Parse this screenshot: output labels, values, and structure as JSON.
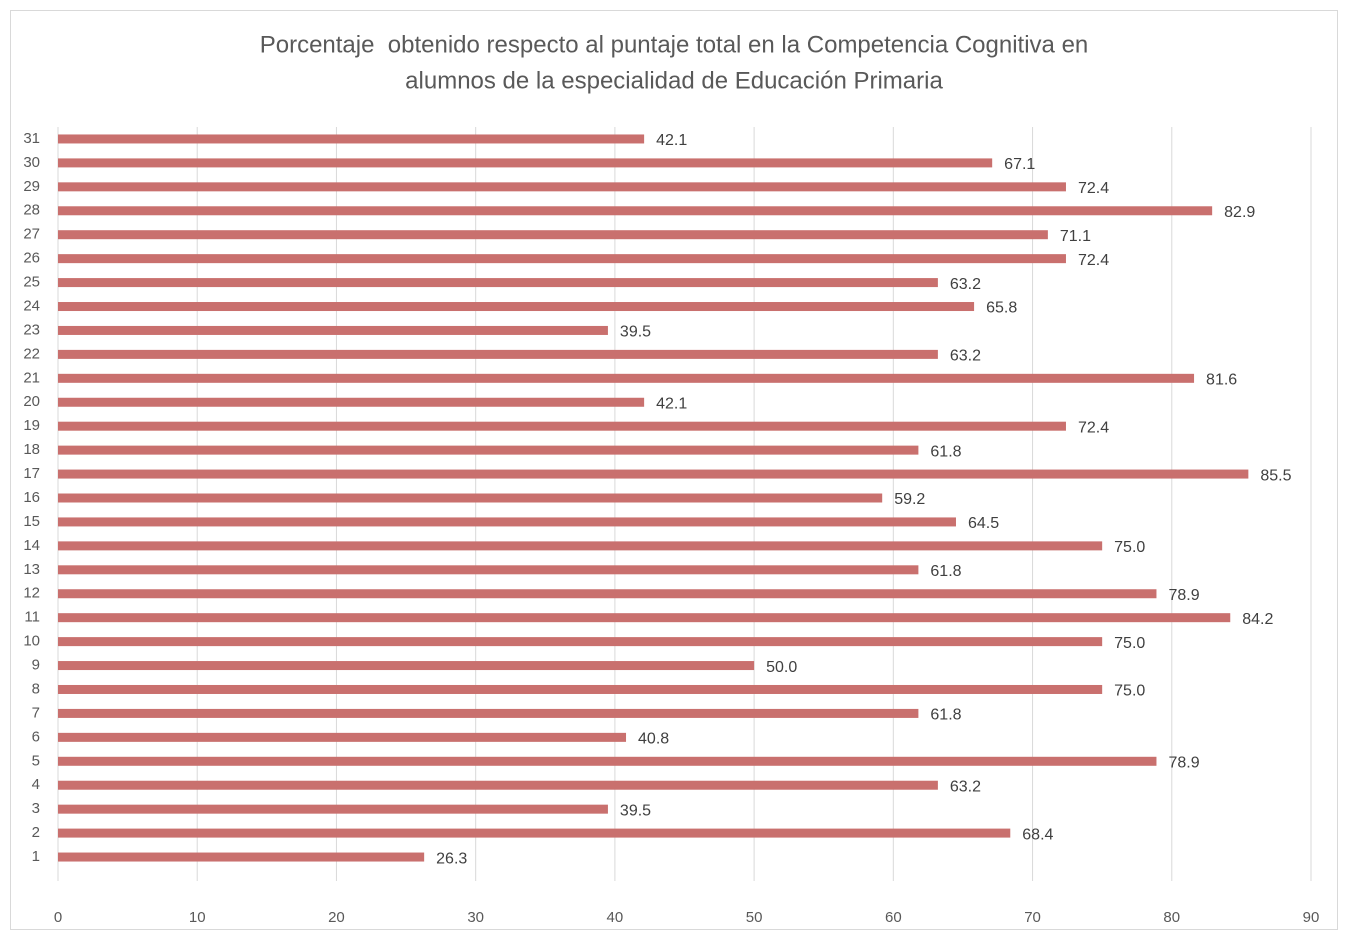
{
  "chart_data": {
    "type": "bar",
    "orientation": "horizontal",
    "title": [
      "Porcentaje  obtenido respecto al puntaje total en la Competencia Cognitiva en",
      "alumnos de la especialidad de Educación Primaria"
    ],
    "categories": [
      "1",
      "2",
      "3",
      "4",
      "5",
      "6",
      "7",
      "8",
      "9",
      "10",
      "11",
      "12",
      "13",
      "14",
      "15",
      "16",
      "17",
      "18",
      "19",
      "20",
      "21",
      "22",
      "23",
      "24",
      "25",
      "26",
      "27",
      "28",
      "29",
      "30",
      "31"
    ],
    "values": [
      26.3,
      68.4,
      39.5,
      63.2,
      78.9,
      40.8,
      61.8,
      75.0,
      50.0,
      75.0,
      84.2,
      78.9,
      61.8,
      75.0,
      64.5,
      59.2,
      85.5,
      61.8,
      72.4,
      42.1,
      81.6,
      63.2,
      39.5,
      65.8,
      63.2,
      72.4,
      71.1,
      82.9,
      72.4,
      67.1,
      42.1
    ],
    "value_labels": [
      "26.3",
      "68.4",
      "39.5",
      "63.2",
      "78.9",
      "40.8",
      "61.8",
      "75.0",
      "50.0",
      "75.0",
      "84.2",
      "78.9",
      "61.8",
      "75.0",
      "64.5",
      "59.2",
      "85.5",
      "61.8",
      "72.4",
      "42.1",
      "81.6",
      "63.2",
      "39.5",
      "65.8",
      "63.2",
      "72.4",
      "71.1",
      "82.9",
      "72.4",
      "67.1",
      "42.1"
    ],
    "color": "#c9706e",
    "xlim": [
      0,
      90
    ],
    "xticks": [
      0,
      10,
      20,
      30,
      40,
      50,
      60,
      70,
      80,
      90
    ],
    "grid": true
  }
}
